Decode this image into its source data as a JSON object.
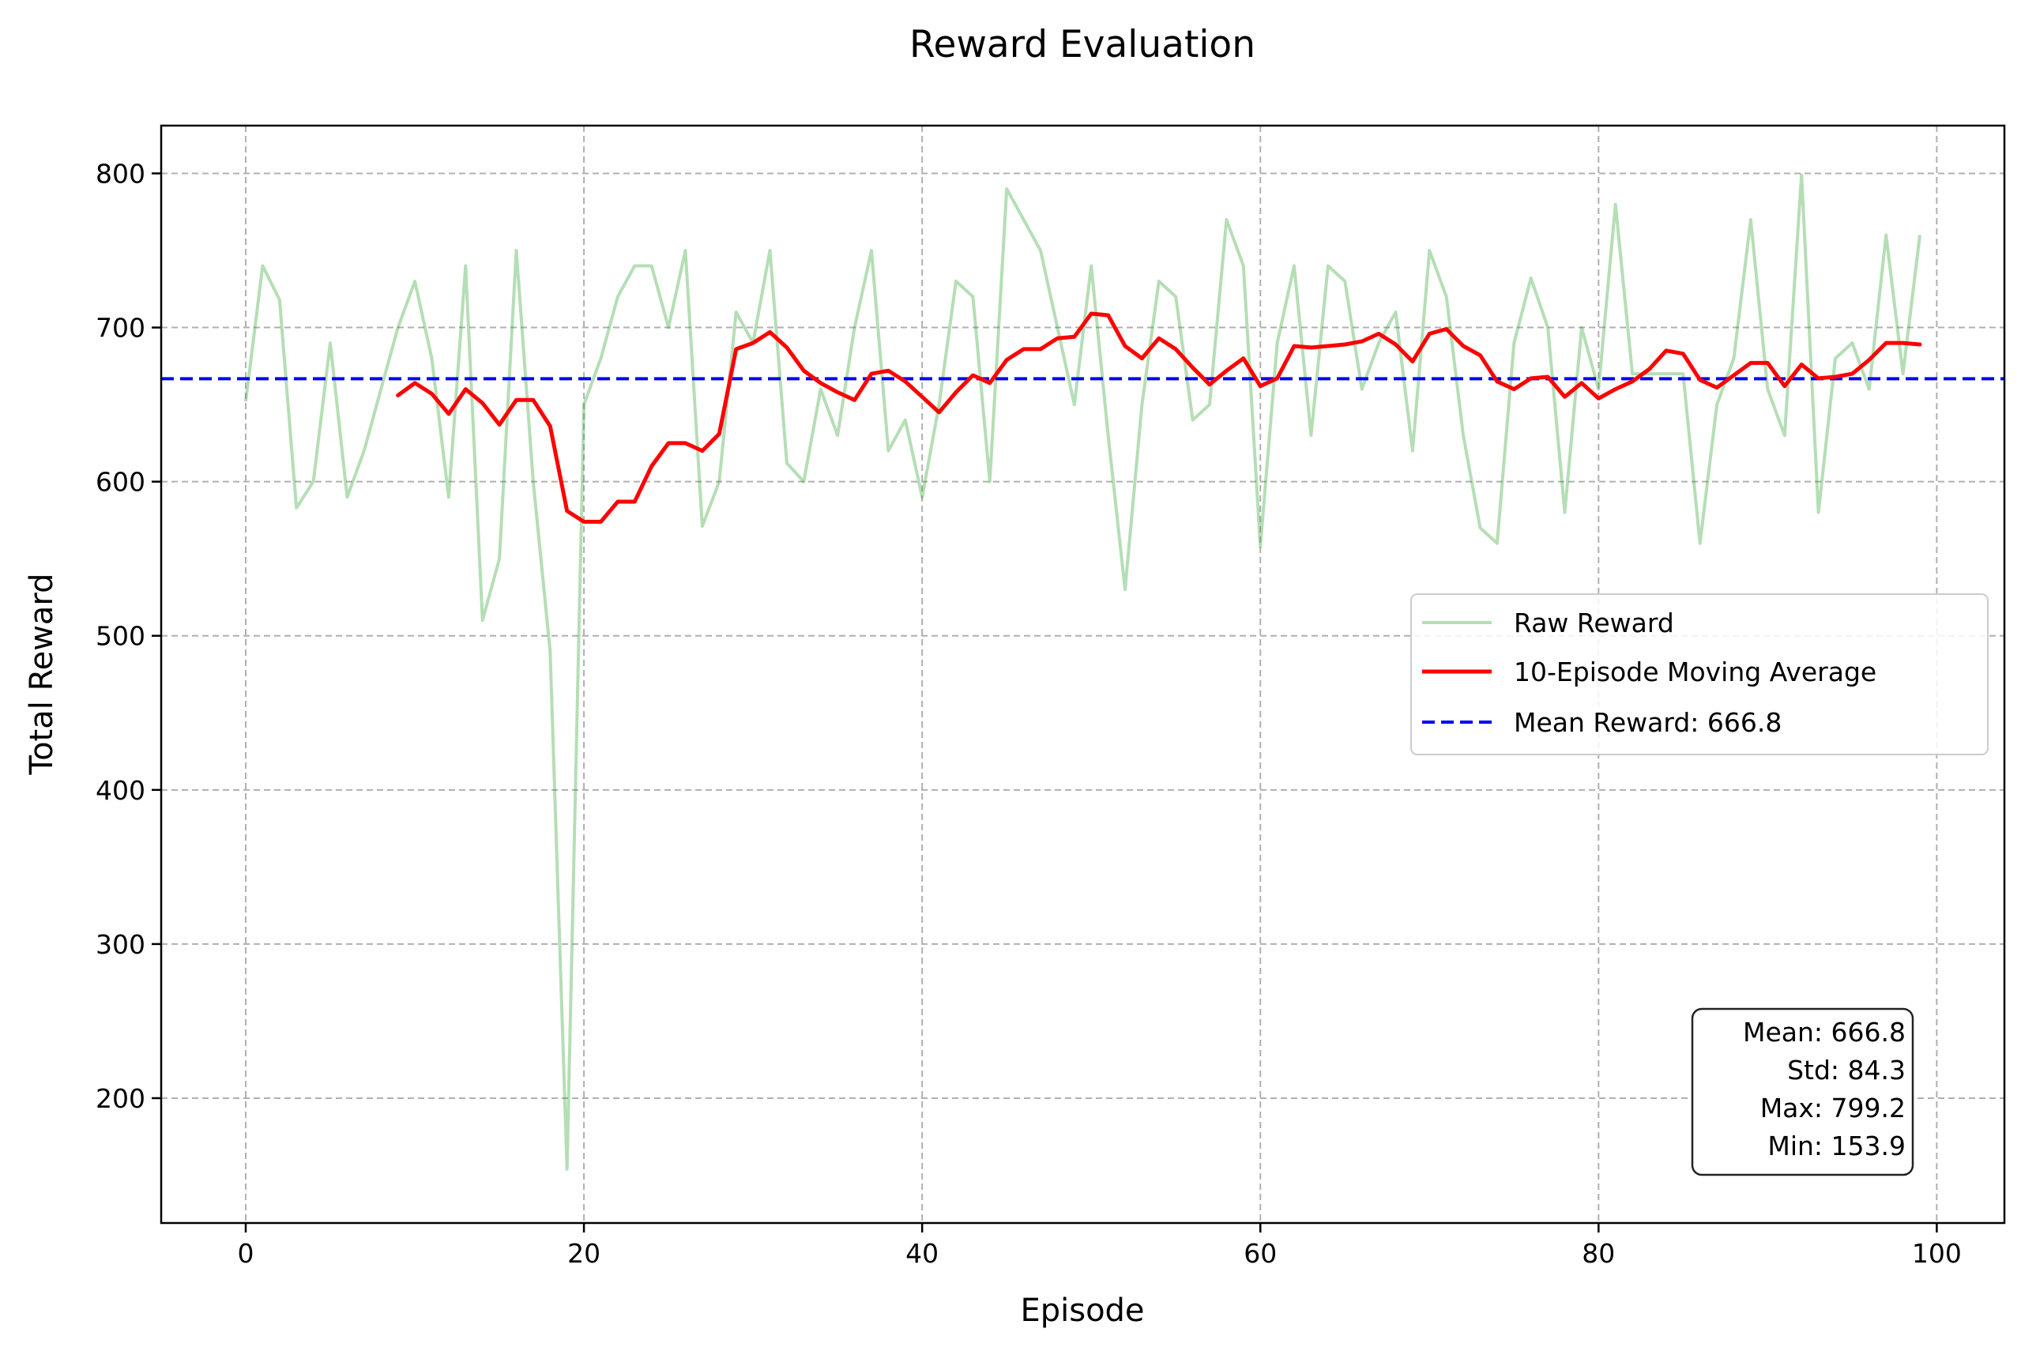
{
  "chart_data": {
    "type": "line",
    "title": "Reward Evaluation",
    "xlabel": "Episode",
    "ylabel": "Total Reward",
    "xlim": [
      -5,
      104
    ],
    "ylim": [
      119,
      831
    ],
    "xticks": [
      0,
      20,
      40,
      60,
      80,
      100
    ],
    "yticks": [
      200,
      300,
      400,
      500,
      600,
      700,
      800
    ],
    "grid": true,
    "legend_position": "center-right",
    "series": [
      {
        "name": "Raw Reward",
        "color": "#2ca02c",
        "opacity": 0.35,
        "style": "solid",
        "x": [
          0,
          1,
          2,
          3,
          4,
          5,
          6,
          7,
          8,
          9,
          10,
          11,
          12,
          13,
          14,
          15,
          16,
          17,
          18,
          19,
          20,
          21,
          22,
          23,
          24,
          25,
          26,
          27,
          28,
          29,
          30,
          31,
          32,
          33,
          34,
          35,
          36,
          37,
          38,
          39,
          40,
          41,
          42,
          43,
          44,
          45,
          46,
          47,
          48,
          49,
          50,
          51,
          52,
          53,
          54,
          55,
          56,
          57,
          58,
          59,
          60,
          61,
          62,
          63,
          64,
          65,
          66,
          67,
          68,
          69,
          70,
          71,
          72,
          73,
          74,
          75,
          76,
          77,
          78,
          79,
          80,
          81,
          82,
          83,
          84,
          85,
          86,
          87,
          88,
          89,
          90,
          91,
          92,
          93,
          94,
          95,
          96,
          97,
          98,
          99
        ],
        "values": [
          652,
          740,
          718,
          583,
          600,
          690,
          590,
          620,
          660,
          700,
          730,
          680,
          590,
          740,
          510,
          550,
          750,
          600,
          490,
          154,
          650,
          680,
          720,
          740,
          740,
          700,
          750,
          571,
          600,
          710,
          690,
          750,
          612,
          600,
          660,
          630,
          700,
          750,
          620,
          640,
          590,
          650,
          730,
          720,
          600,
          790,
          770,
          750,
          700,
          650,
          740,
          630,
          530,
          650,
          730,
          720,
          640,
          650,
          770,
          740,
          558,
          690,
          740,
          630,
          740,
          730,
          660,
          690,
          710,
          620,
          750,
          720,
          630,
          570,
          560,
          690,
          732,
          700,
          580,
          700,
          660,
          780,
          670,
          670,
          670,
          670,
          560,
          650,
          680,
          770,
          660,
          630,
          799,
          580,
          680,
          690,
          660,
          760,
          670,
          760
        ]
      },
      {
        "name": "10-Episode Moving Average",
        "color": "#ff0000",
        "style": "solid",
        "x": [
          9,
          10,
          11,
          12,
          13,
          14,
          15,
          16,
          17,
          18,
          19,
          20,
          21,
          22,
          23,
          24,
          25,
          26,
          27,
          28,
          29,
          30,
          31,
          32,
          33,
          34,
          35,
          36,
          37,
          38,
          39,
          40,
          41,
          42,
          43,
          44,
          45,
          46,
          47,
          48,
          49,
          50,
          51,
          52,
          53,
          54,
          55,
          56,
          57,
          58,
          59,
          60,
          61,
          62,
          63,
          64,
          65,
          66,
          67,
          68,
          69,
          70,
          71,
          72,
          73,
          74,
          75,
          76,
          77,
          78,
          79,
          80,
          81,
          82,
          83,
          84,
          85,
          86,
          87,
          88,
          89,
          90,
          91,
          92,
          93,
          94,
          95,
          96,
          97,
          98,
          99
        ],
        "values": [
          656,
          664,
          657,
          644,
          660,
          651,
          637,
          653,
          653,
          636,
          581,
          574,
          574,
          587,
          587,
          610,
          625,
          625,
          620,
          631,
          686,
          690,
          697,
          687,
          672,
          664,
          658,
          653,
          670,
          672,
          665,
          655,
          645,
          658,
          669,
          664,
          679,
          686,
          686,
          693,
          694,
          709,
          708,
          688,
          680,
          693,
          686,
          674,
          663,
          672,
          680,
          662,
          667,
          688,
          687,
          688,
          689,
          691,
          696,
          689,
          678,
          696,
          699,
          688,
          682,
          665,
          660,
          667,
          668,
          655,
          664,
          654,
          660,
          665,
          673,
          685,
          683,
          666,
          661,
          669,
          677,
          677,
          662,
          676,
          667,
          668,
          670,
          679,
          690,
          690,
          689
        ]
      },
      {
        "name": "Mean Reward: 666.8",
        "color": "#0000ff",
        "style": "dashed",
        "y": 666.8
      }
    ],
    "stats_box": [
      "Mean: 666.8",
      "Std: 84.3",
      "Max: 799.2",
      "Min: 153.9"
    ]
  }
}
